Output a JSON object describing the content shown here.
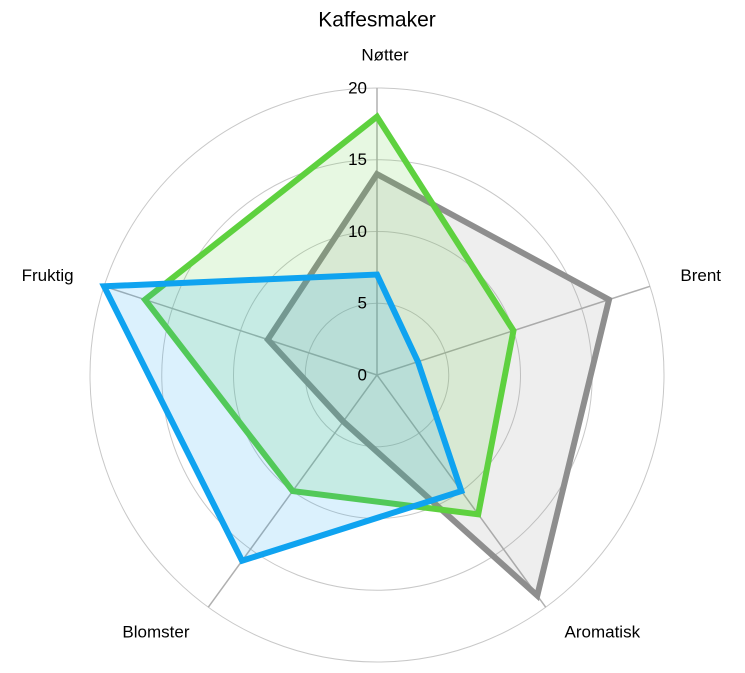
{
  "chart_data": {
    "type": "radar",
    "title": "Kaffesmaker",
    "categories": [
      "Nøtter",
      "Brent",
      "Aromatisk",
      "Blomster",
      "Fruktig"
    ],
    "series": [
      {
        "color": "#8e8e8e",
        "values": [
          14,
          17,
          19,
          4,
          8
        ]
      },
      {
        "color": "#5ed13f",
        "values": [
          18,
          10,
          12,
          10,
          17
        ]
      },
      {
        "color": "#0fa3f0",
        "values": [
          7,
          3,
          10,
          16,
          20
        ]
      }
    ],
    "ylim": [
      0,
      20
    ],
    "yticks": [
      0,
      5,
      10,
      15,
      20
    ],
    "grid": true
  }
}
